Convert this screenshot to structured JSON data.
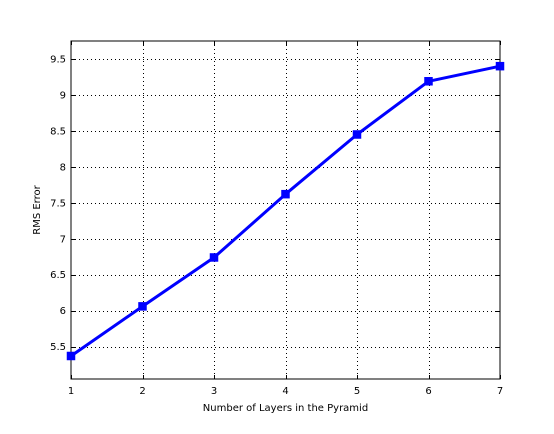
{
  "chart_data": {
    "type": "line",
    "title": "",
    "xlabel": "Number of Layers in the Pyramid",
    "ylabel": "RMS Error",
    "x": [
      1,
      2,
      3,
      4,
      5,
      6,
      7
    ],
    "series": [
      {
        "values": [
          5.37,
          6.06,
          6.74,
          7.62,
          8.45,
          9.19,
          9.4
        ],
        "color": "#0000ff",
        "marker": "square"
      }
    ],
    "xlim": [
      1,
      7
    ],
    "ylim": [
      5.05,
      9.75
    ],
    "xticks": [
      1,
      2,
      3,
      4,
      5,
      6,
      7
    ],
    "xtick_labels": [
      "1",
      "2",
      "3",
      "4",
      "5",
      "6",
      "7"
    ],
    "yticks": [
      5.5,
      6,
      6.5,
      7,
      7.5,
      8,
      8.5,
      9,
      9.5
    ],
    "ytick_labels": [
      "5.5",
      "6",
      "6.5",
      "7",
      "7.5",
      "8",
      "8.5",
      "9",
      "9.5"
    ],
    "grid": true,
    "grid_style": "dotted"
  }
}
